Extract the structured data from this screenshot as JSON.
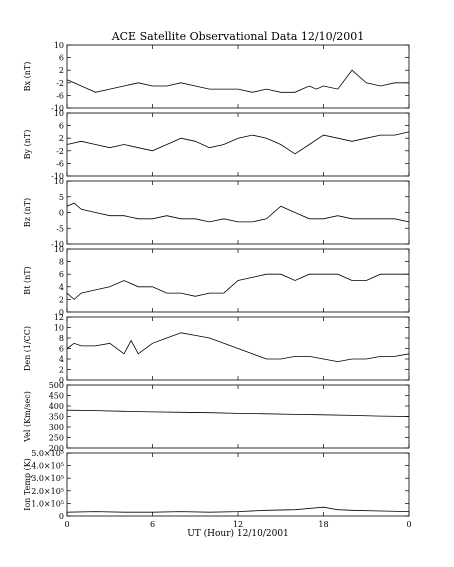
{
  "chart_data": {
    "type": "line",
    "title": "ACE Satellite Observational Data   12/10/2001",
    "xlabel": "UT (Hour)  12/10/2001",
    "x_ticks": [
      "0",
      "6",
      "12",
      "18",
      "0"
    ],
    "xlim": [
      0,
      24
    ],
    "grid": false,
    "panels": [
      {
        "ylabel": "Bx (nT)",
        "ylim": [
          -10,
          10
        ],
        "y_ticks": [
          "10",
          "6",
          "2",
          "-2",
          "-6",
          "-10"
        ],
        "series": [
          {
            "x": [
              0,
              0.5,
              1,
              1.5,
              2,
              3,
              4,
              5,
              6,
              7,
              8,
              9,
              10,
              11,
              12,
              13,
              14,
              15,
              16,
              16.5,
              17,
              17.5,
              18,
              19,
              20,
              21,
              22,
              23,
              24
            ],
            "y": [
              -1,
              -2,
              -3,
              -4,
              -5,
              -4,
              -3,
              -2,
              -3,
              -3,
              -2,
              -3,
              -4,
              -4,
              -4,
              -5,
              -4,
              -5,
              -5,
              -4,
              -3,
              -4,
              -3,
              -4,
              2,
              -2,
              -3,
              -2,
              -2
            ]
          }
        ]
      },
      {
        "ylabel": "By (nT)",
        "ylim": [
          -10,
          10
        ],
        "y_ticks": [
          "10",
          "6",
          "2",
          "-2",
          "-6",
          "-10"
        ],
        "series": [
          {
            "x": [
              0,
              1,
              2,
              3,
              4,
              5,
              6,
              7,
              8,
              9,
              10,
              11,
              12,
              13,
              14,
              15,
              16,
              17,
              18,
              19,
              20,
              21,
              22,
              23,
              24
            ],
            "y": [
              0,
              1,
              0,
              -1,
              0,
              -1,
              -2,
              0,
              2,
              1,
              -1,
              0,
              2,
              3,
              2,
              0,
              -3,
              0,
              3,
              2,
              1,
              2,
              3,
              3,
              4
            ]
          }
        ]
      },
      {
        "ylabel": "Bz (nT)",
        "ylim": [
          -10,
          10
        ],
        "y_ticks": [
          "10",
          "5",
          "0",
          "-5",
          "-10"
        ],
        "series": [
          {
            "x": [
              0,
              0.5,
              1,
              2,
              3,
              4,
              5,
              6,
              7,
              8,
              9,
              10,
              11,
              12,
              13,
              14,
              15,
              16,
              17,
              18,
              19,
              20,
              21,
              22,
              23,
              24
            ],
            "y": [
              2,
              3,
              1,
              0,
              -1,
              -1,
              -2,
              -2,
              -1,
              -2,
              -2,
              -3,
              -2,
              -3,
              -3,
              -2,
              2,
              0,
              -2,
              -2,
              -1,
              -2,
              -2,
              -2,
              -2,
              -3
            ]
          }
        ]
      },
      {
        "ylabel": "Bt (nT)",
        "ylim": [
          0,
          10
        ],
        "y_ticks": [
          "10",
          "8",
          "6",
          "4",
          "2",
          "0"
        ],
        "series": [
          {
            "x": [
              0,
              0.5,
              1,
              2,
              3,
              4,
              5,
              6,
              7,
              8,
              9,
              10,
              11,
              12,
              13,
              14,
              15,
              16,
              17,
              18,
              19,
              20,
              21,
              22,
              23,
              24
            ],
            "y": [
              3,
              2,
              3,
              3.5,
              4,
              5,
              4,
              4,
              3,
              3,
              2.5,
              3,
              3,
              5,
              5.5,
              6,
              6,
              5,
              6,
              6,
              6,
              5,
              5,
              6,
              6,
              6
            ]
          }
        ]
      },
      {
        "ylabel": "Den (1/CC)",
        "ylim": [
          0,
          12
        ],
        "y_ticks": [
          "12",
          "10",
          "8",
          "6",
          "4",
          "2",
          "0"
        ],
        "series": [
          {
            "x": [
              0,
              0.5,
              1,
              2,
              3,
              4,
              4.5,
              5,
              6,
              7,
              8,
              9,
              10,
              11,
              12,
              13,
              14,
              15,
              16,
              17,
              18,
              19,
              20,
              21,
              22,
              23,
              24
            ],
            "y": [
              6,
              7,
              6.5,
              6.5,
              7,
              5,
              7.5,
              5,
              7,
              8,
              9,
              8.5,
              8,
              7,
              6,
              5,
              4,
              4,
              4.5,
              4.5,
              4,
              3.5,
              4,
              4,
              4.5,
              4.5,
              5
            ]
          }
        ]
      },
      {
        "ylabel": "Vel (Km/sec)",
        "ylim": [
          200,
          500
        ],
        "y_ticks": [
          "500",
          "450",
          "400",
          "350",
          "300",
          "250",
          "200"
        ],
        "series": [
          {
            "x": [
              0,
              2,
              4,
              6,
              8,
              10,
              12,
              14,
              16,
              18,
              20,
              22,
              24
            ],
            "y": [
              380,
              378,
              375,
              372,
              370,
              368,
              365,
              363,
              360,
              358,
              355,
              352,
              350
            ]
          }
        ]
      },
      {
        "ylabel": "Ion Temp (K)",
        "ylim": [
          0,
          500000
        ],
        "y_ticks": [
          "5.0×10⁵",
          "4.0×10⁵",
          "3.0×10⁵",
          "2.0×10⁵",
          "1.0×10⁵",
          "0"
        ],
        "series": [
          {
            "x": [
              0,
              2,
              4,
              6,
              8,
              10,
              12,
              14,
              16,
              18,
              19,
              20,
              22,
              24
            ],
            "y": [
              30000,
              35000,
              30000,
              30000,
              35000,
              30000,
              35000,
              45000,
              50000,
              70000,
              50000,
              45000,
              40000,
              35000
            ]
          }
        ]
      }
    ]
  }
}
